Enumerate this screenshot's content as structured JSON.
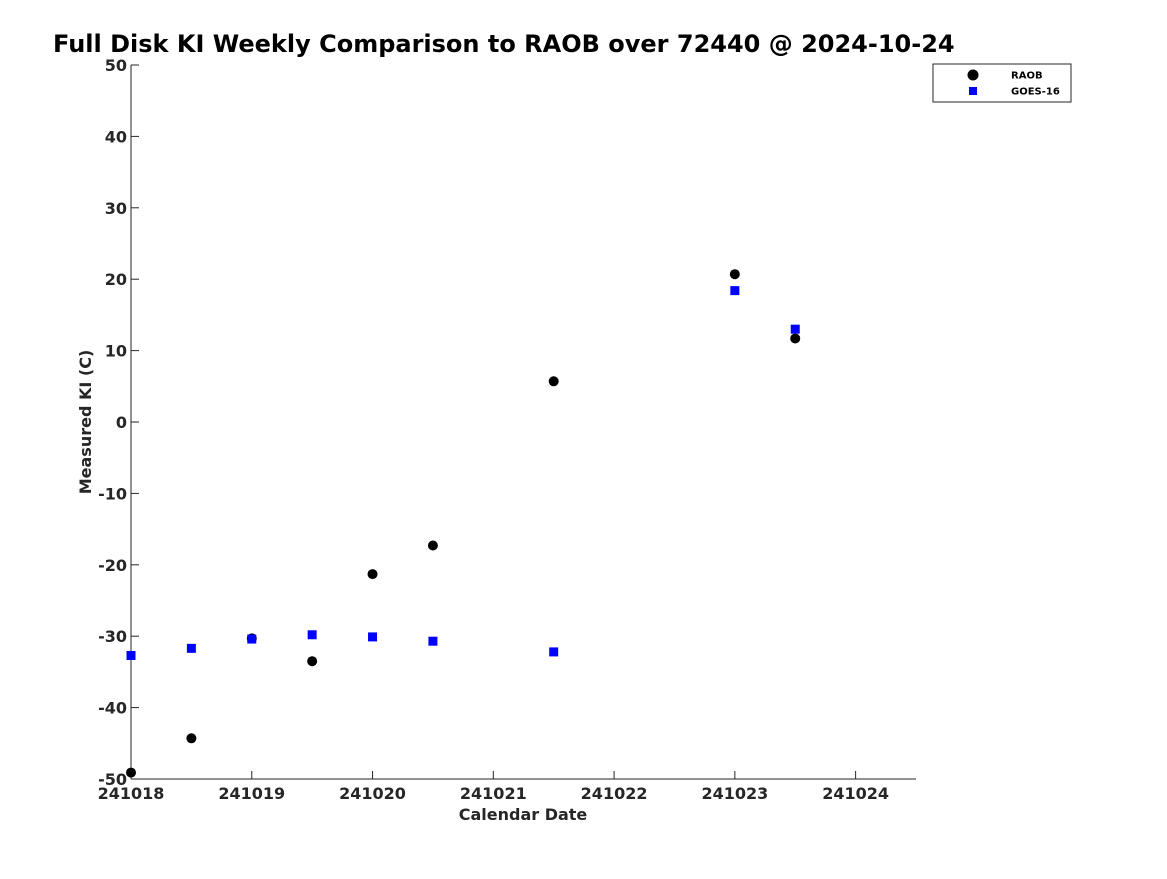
{
  "chart_data": {
    "type": "scatter",
    "title": "Full Disk KI Weekly Comparison to RAOB over 72440 @ 2024-10-24",
    "xlabel": "Calendar Date",
    "ylabel": "Measured KI (C)",
    "xlim": [
      "241018",
      "241024.5"
    ],
    "ylim": [
      -50,
      50
    ],
    "x_ticks": [
      "241018",
      "241019",
      "241020",
      "241021",
      "241022",
      "241023",
      "241024"
    ],
    "y_ticks": [
      50,
      40,
      30,
      20,
      10,
      0,
      -10,
      -20,
      -30,
      -40,
      -50
    ],
    "grid": false,
    "legend_position": "top-right",
    "series": [
      {
        "name": "RAOB",
        "marker": "circle",
        "color": "#000000",
        "x": [
          241018,
          241018.5,
          241019,
          241019.5,
          241020,
          241020.5,
          241021.5,
          241023,
          241023.5
        ],
        "y": [
          -49.1,
          -44.3,
          -30.3,
          -33.5,
          -21.3,
          -17.3,
          5.7,
          20.7,
          11.7
        ]
      },
      {
        "name": "GOES-16",
        "marker": "square",
        "color": "#0000ff",
        "x": [
          241018,
          241018.5,
          241019,
          241019.5,
          241020,
          241020.5,
          241021.5,
          241023,
          241023.5
        ],
        "y": [
          -32.7,
          -31.7,
          -30.4,
          -29.8,
          -30.1,
          -30.7,
          -32.2,
          18.4,
          13.0
        ]
      }
    ]
  }
}
